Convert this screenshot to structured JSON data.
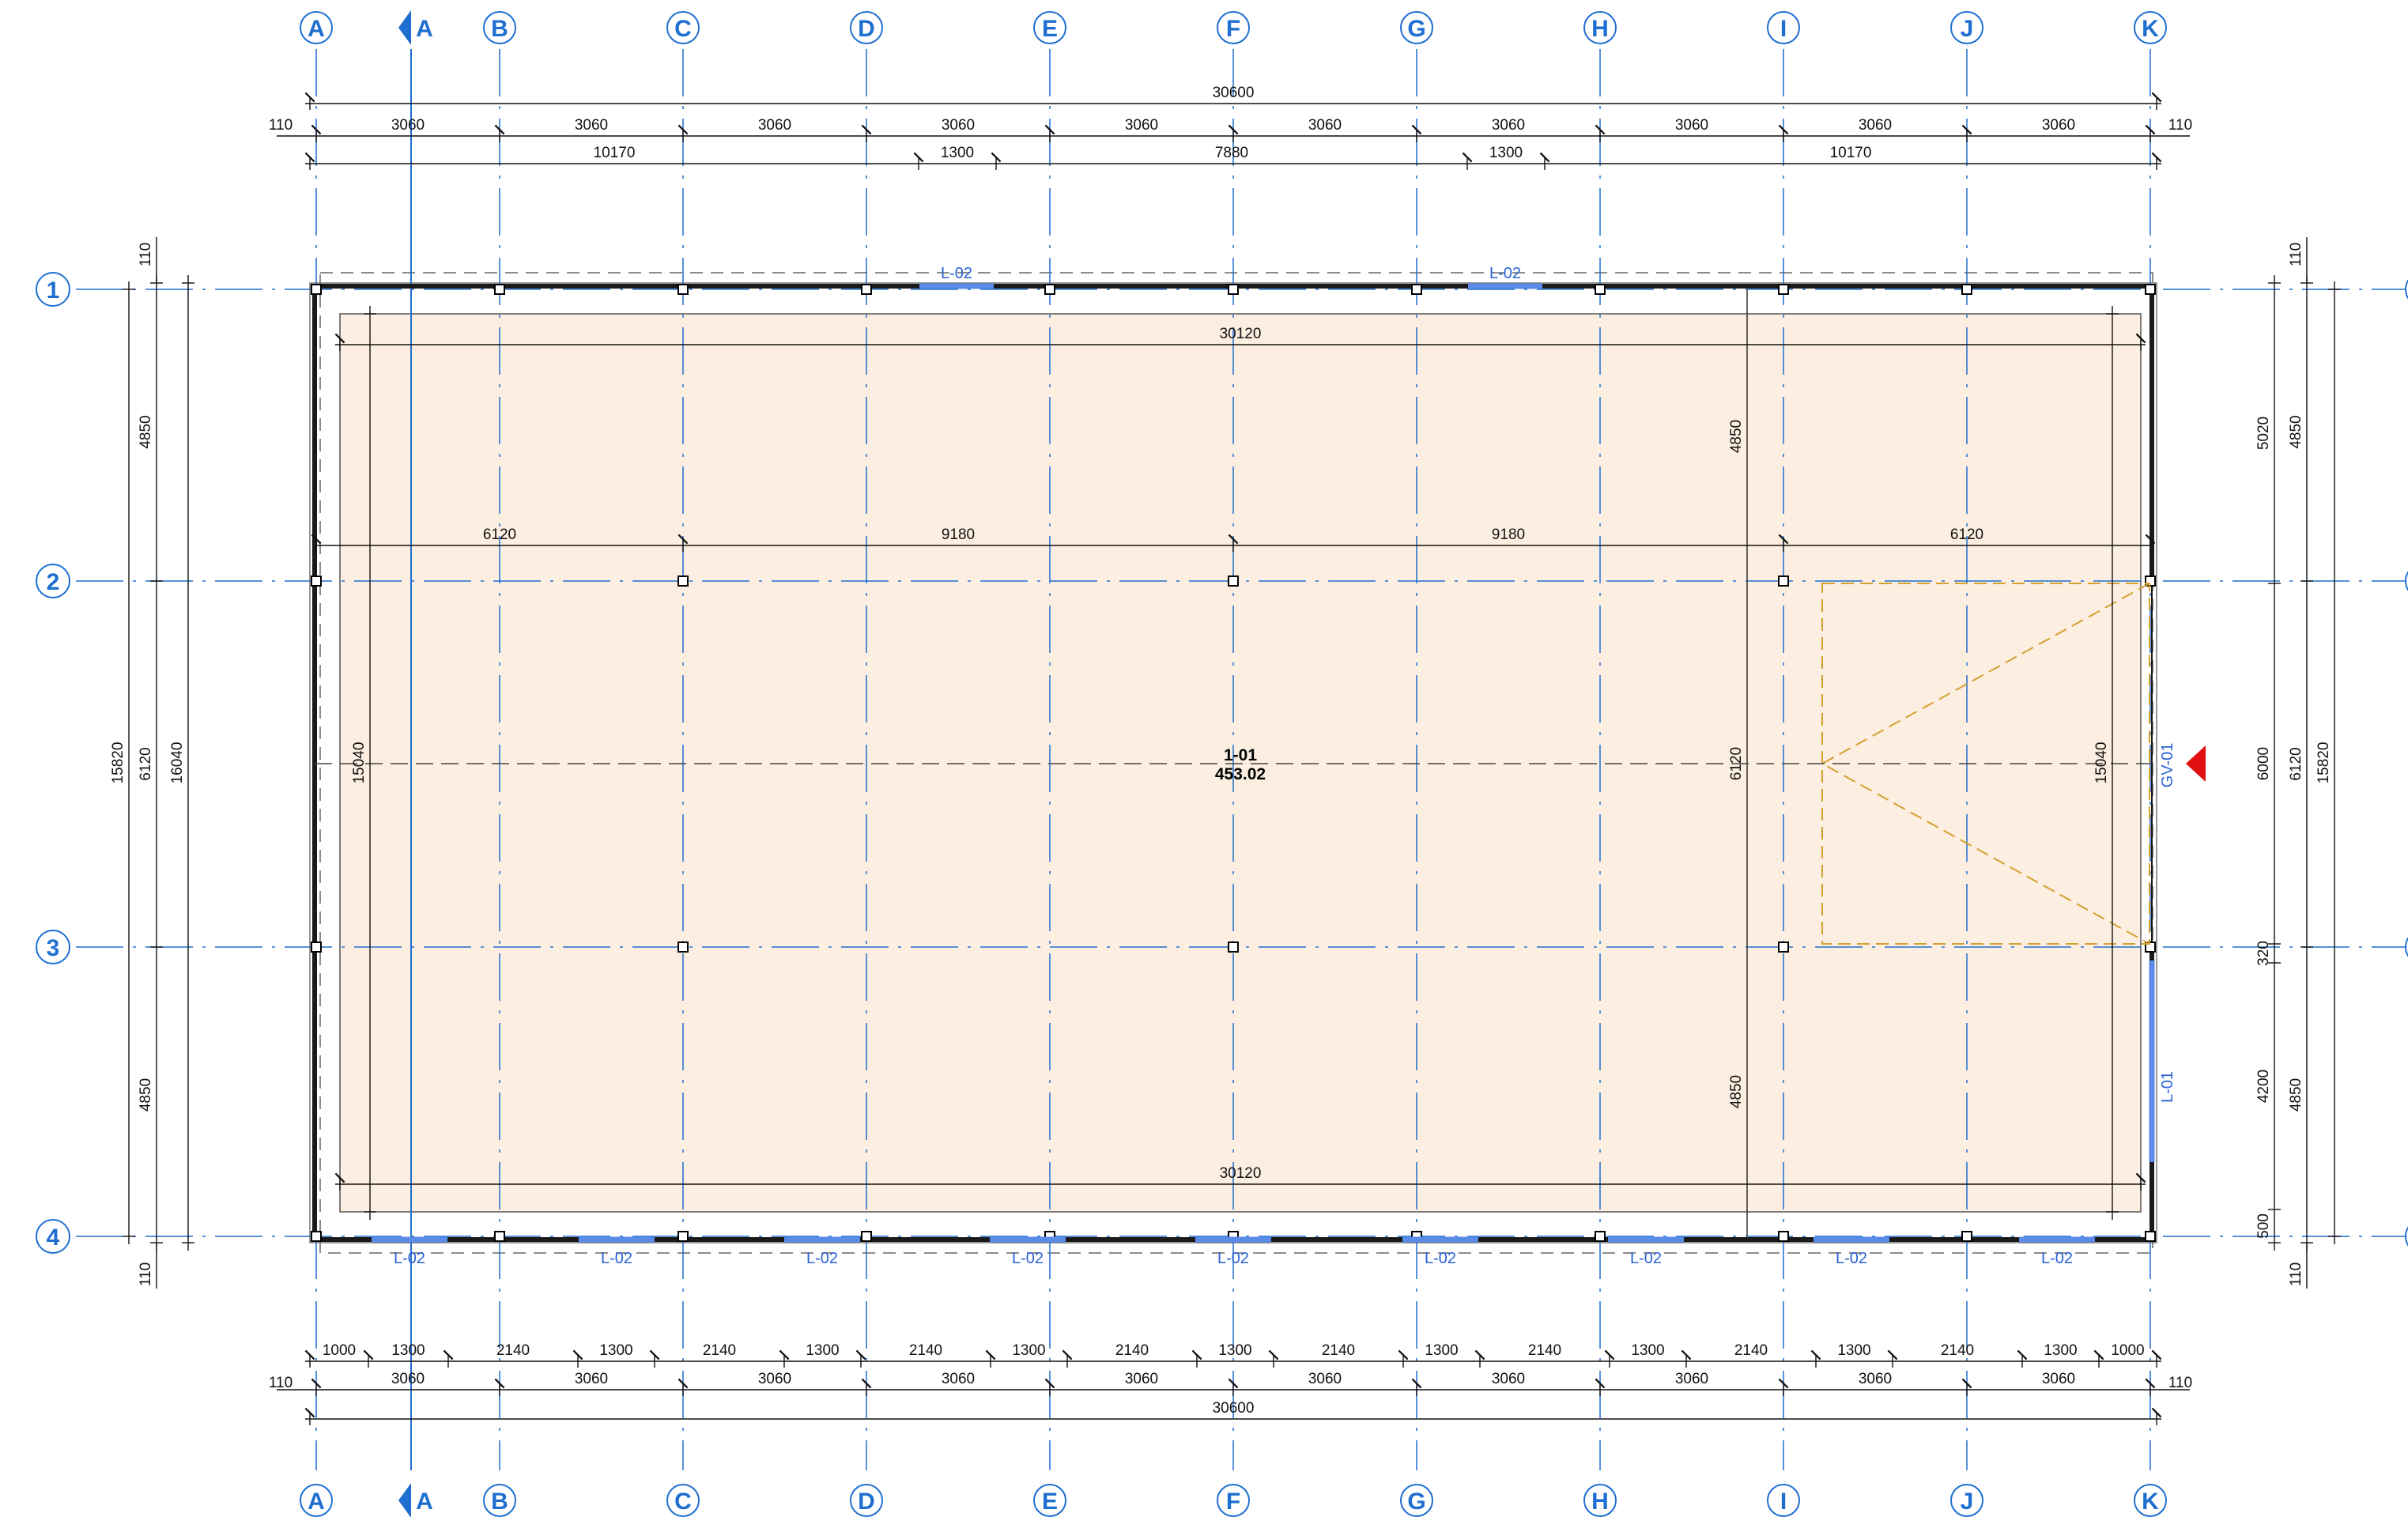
{
  "grid": {
    "columns": [
      "A",
      "B",
      "C",
      "D",
      "E",
      "F",
      "G",
      "H",
      "I",
      "J",
      "K"
    ],
    "rows": [
      "1",
      "2",
      "3",
      "4"
    ],
    "section_marker": "A"
  },
  "top_dims": {
    "overall": "30600",
    "edge_left": "110",
    "edge_right": "110",
    "bays": [
      "3060",
      "3060",
      "3060",
      "3060",
      "3060",
      "3060",
      "3060",
      "3060",
      "3060",
      "3060"
    ],
    "segments": [
      "10170",
      "1300",
      "7880",
      "1300",
      "10170"
    ]
  },
  "bottom_dims": {
    "overall": "30600",
    "edge_left": "110",
    "edge_right": "110",
    "bays": [
      "3060",
      "3060",
      "3060",
      "3060",
      "3060",
      "3060",
      "3060",
      "3060",
      "3060",
      "3060"
    ],
    "openings": [
      "1000",
      "1300",
      "2140",
      "1300",
      "2140",
      "1300",
      "2140",
      "1300",
      "2140",
      "1300",
      "2140",
      "1300",
      "2140",
      "1300",
      "2140",
      "1300",
      "2140",
      "1300",
      "1000"
    ]
  },
  "left_dims": {
    "edge_top": "110",
    "edge_bottom": "110",
    "bays": [
      "4850",
      "6120",
      "4850"
    ],
    "overall_inner": "15820",
    "overall_outer": "16040"
  },
  "right_dims": {
    "edge_top": "110",
    "edge_bottom": "110",
    "bays": [
      "4850",
      "6120",
      "4850"
    ],
    "segments": [
      "5020",
      "6000",
      "320",
      "4200",
      "500"
    ],
    "overall": "15820"
  },
  "interior_dims": {
    "top_width": "30120",
    "bottom_width": "30120",
    "row2_spans": [
      "6120",
      "9180",
      "9180",
      "6120"
    ],
    "height_left": "15040",
    "height_right": "15040",
    "col_h_top": "4850",
    "col_h_mid": "6120",
    "col_h_bottom": "4850"
  },
  "room": {
    "number": "1-01",
    "area": "453.02"
  },
  "windows": {
    "top": [
      "L-02",
      "L-02"
    ],
    "bottom": [
      "L-02",
      "L-02",
      "L-02",
      "L-02",
      "L-02",
      "L-02",
      "L-02",
      "L-02",
      "L-02"
    ],
    "right": "L-01"
  },
  "gate": {
    "label": "GV-01"
  },
  "colors": {
    "grid": "#1f6fd0",
    "floor": "#fcefe1",
    "wall": "#1a1a1a",
    "gate": "#d4a030",
    "marker": "#e01010"
  }
}
